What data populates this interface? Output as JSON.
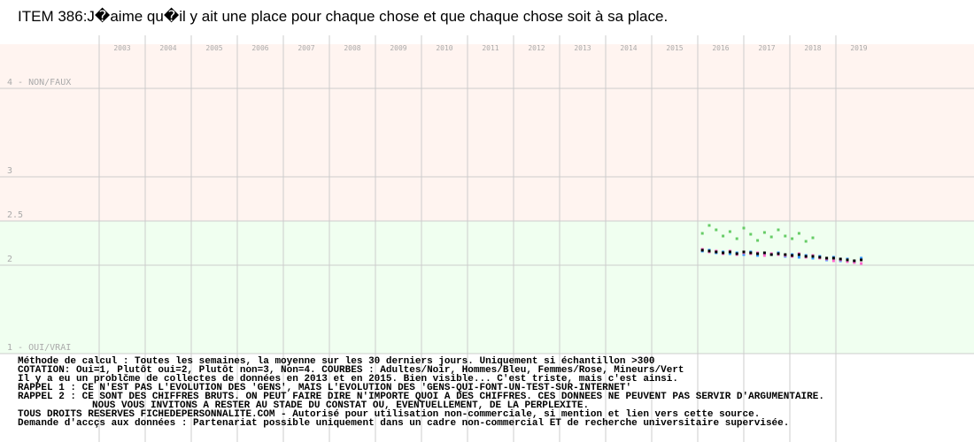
{
  "chart_data": {
    "type": "scatter",
    "title": "ITEM 386:J�aime qu�il y ait une place pour chaque chose et que chaque chose soit à sa place.",
    "x": [
      2016.1,
      2016.25,
      2016.4,
      2016.55,
      2016.7,
      2016.85,
      2017.0,
      2017.15,
      2017.3,
      2017.45,
      2017.6,
      2017.75,
      2017.9,
      2018.05,
      2018.2,
      2018.35,
      2018.5,
      2018.65,
      2018.8,
      2018.95,
      2019.1,
      2019.25,
      2019.4,
      2019.55
    ],
    "series": [
      {
        "color": "#66cc66",
        "values": [
          2.36,
          2.45,
          2.4,
          2.33,
          2.38,
          2.3,
          2.42,
          2.35,
          2.28,
          2.37,
          2.32,
          2.4,
          2.33,
          2.3,
          2.36,
          2.27,
          2.31,
          null,
          null,
          null,
          null,
          null,
          null,
          null
        ]
      },
      {
        "color": "#3399ff",
        "values": [
          2.16,
          2.17,
          2.14,
          2.15,
          2.13,
          2.14,
          2.12,
          2.15,
          2.11,
          2.13,
          2.12,
          2.14,
          2.1,
          2.12,
          2.09,
          2.11,
          2.08,
          2.1,
          2.06,
          2.09,
          2.05,
          2.07,
          2.04,
          2.08
        ]
      },
      {
        "color": "#ff66cc",
        "values": [
          2.18,
          2.15,
          2.16,
          2.13,
          2.16,
          2.12,
          2.14,
          2.13,
          2.14,
          2.11,
          2.13,
          2.12,
          2.11,
          2.1,
          2.13,
          2.09,
          2.11,
          2.08,
          2.07,
          2.05,
          2.06,
          2.04,
          2.03,
          2.02
        ]
      },
      {
        "color": "#000000",
        "values": [
          2.17,
          2.16,
          2.15,
          2.14,
          2.15,
          2.13,
          2.15,
          2.14,
          2.13,
          2.14,
          2.12,
          2.13,
          2.12,
          2.11,
          2.12,
          2.1,
          2.1,
          2.09,
          2.08,
          2.08,
          2.07,
          2.06,
          2.05,
          2.06
        ]
      }
    ],
    "xlim": [
      2003,
      2022
    ],
    "xticks": [
      2003,
      2004,
      2005,
      2006,
      2007,
      2008,
      2009,
      2010,
      2011,
      2012,
      2013,
      2014,
      2015,
      2016,
      2017,
      2018,
      2019
    ],
    "ylim": [
      1,
      4.5
    ],
    "yticks": [
      {
        "value": 1,
        "label": "1 - OUI/VRAI"
      },
      2,
      2.5,
      3,
      {
        "value": 4,
        "label": "4 - NON/FAUX"
      }
    ],
    "grid": true,
    "bands": [
      {
        "from": 1,
        "to": 2.5,
        "color": "#f0fff0"
      },
      {
        "from": 2.5,
        "to": 4.5,
        "color": "#fff4f0"
      }
    ],
    "notes": [
      "Méthode de calcul : Toutes les semaines, la moyenne sur les 30 derniers jours. Uniquement si échantillon >300",
      "COTATION: Oui=1, Plutôt oui=2, Plutôt non=3, Non=4. COURBES : Adultes/Noir, Hommes/Bleu, Femmes/Rose, Mineurs/Vert",
      "Il y a eu un problčme de collectes de données en 2013 et en 2015. Bien visible... C'est triste, mais c'est ainsi.",
      "RAPPEL 1 : CE N'EST PAS L'EVOLUTION DES 'GENS', MAIS L'EVOLUTION DES 'GENS-QUI-FONT-UN-TEST-SUR-INTERNET'",
      "RAPPEL 2 : CE SONT DES CHIFFRES BRUTS. ON PEUT FAIRE DIRE N'IMPORTE QUOI A DES CHIFFRES. CES DONNEES NE PEUVENT PAS SERVIR D'ARGUMENTAIRE.",
      "NOUS VOUS INVITONS A RESTER AU STADE DU CONSTAT OU, EVENTUELLEMENT,  DE LA PERPLEXITE.",
      "TOUS DROITS RESERVES FICHEDEPERSONNALITE.COM - Autorisé pour utilisation non-commerciale, si mention et lien vers cette source.",
      "Demande d'accçs aux données : Partenariat possible uniquement dans un cadre non-commercial ET de recherche universitaire supervisée."
    ]
  }
}
